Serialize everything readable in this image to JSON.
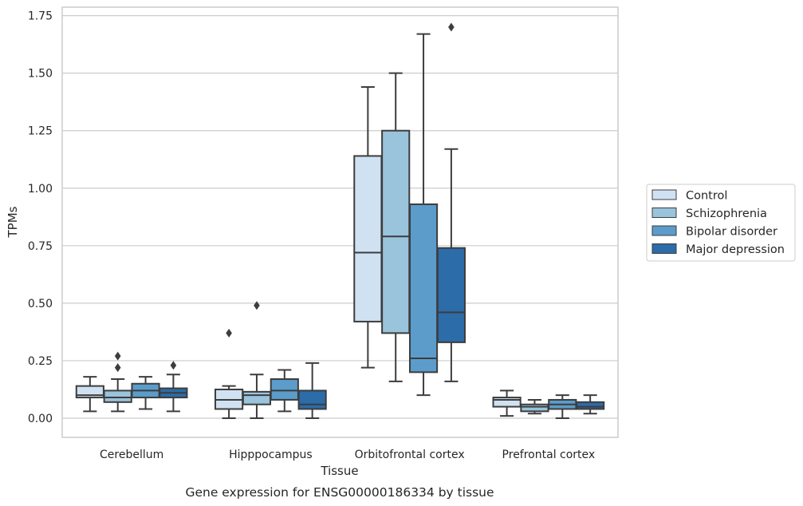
{
  "chart_data": {
    "type": "boxplot",
    "xlabel": "Tissue",
    "ylabel": "TPMs",
    "caption": "Gene expression for ENSG00000186334 by tissue",
    "ylim": [
      -0.08,
      1.78
    ],
    "yticks": [
      "0.00",
      "0.25",
      "0.50",
      "0.75",
      "1.00",
      "1.25",
      "1.50",
      "1.75"
    ],
    "grid": "horizontal",
    "legend_position": "right",
    "categories": [
      "Cerebellum",
      "Hipppocampus",
      "Orbitofrontal cortex",
      "Prefrontal cortex"
    ],
    "series": [
      {
        "name": "Control",
        "color": "#d0e1f2",
        "boxes": [
          {
            "whislo": 0.03,
            "q1": 0.09,
            "med": 0.1,
            "q3": 0.14,
            "whishi": 0.18,
            "fliers": []
          },
          {
            "whislo": 0.0,
            "q1": 0.04,
            "med": 0.08,
            "q3": 0.125,
            "whishi": 0.14,
            "fliers": [
              0.37
            ]
          },
          {
            "whislo": 0.22,
            "q1": 0.42,
            "med": 0.72,
            "q3": 1.14,
            "whishi": 1.44,
            "fliers": []
          },
          {
            "whislo": 0.01,
            "q1": 0.05,
            "med": 0.08,
            "q3": 0.09,
            "whishi": 0.12,
            "fliers": []
          }
        ]
      },
      {
        "name": "Schizophrenia",
        "color": "#9ac3dc",
        "boxes": [
          {
            "whislo": 0.03,
            "q1": 0.07,
            "med": 0.09,
            "q3": 0.12,
            "whishi": 0.17,
            "fliers": [
              0.22,
              0.27
            ]
          },
          {
            "whislo": 0.0,
            "q1": 0.06,
            "med": 0.1,
            "q3": 0.115,
            "whishi": 0.19,
            "fliers": [
              0.49
            ]
          },
          {
            "whislo": 0.16,
            "q1": 0.37,
            "med": 0.79,
            "q3": 1.25,
            "whishi": 1.5,
            "fliers": []
          },
          {
            "whislo": 0.02,
            "q1": 0.03,
            "med": 0.05,
            "q3": 0.06,
            "whishi": 0.08,
            "fliers": []
          }
        ]
      },
      {
        "name": "Bipolar disorder",
        "color": "#5b9cca",
        "boxes": [
          {
            "whislo": 0.04,
            "q1": 0.09,
            "med": 0.12,
            "q3": 0.15,
            "whishi": 0.18,
            "fliers": []
          },
          {
            "whislo": 0.03,
            "q1": 0.08,
            "med": 0.12,
            "q3": 0.17,
            "whishi": 0.21,
            "fliers": []
          },
          {
            "whislo": 0.1,
            "q1": 0.2,
            "med": 0.26,
            "q3": 0.93,
            "whishi": 1.67,
            "fliers": []
          },
          {
            "whislo": 0.0,
            "q1": 0.04,
            "med": 0.06,
            "q3": 0.08,
            "whishi": 0.1,
            "fliers": []
          }
        ]
      },
      {
        "name": "Major depression",
        "color": "#2b6ca9",
        "boxes": [
          {
            "whislo": 0.03,
            "q1": 0.09,
            "med": 0.11,
            "q3": 0.13,
            "whishi": 0.19,
            "fliers": [
              0.23
            ]
          },
          {
            "whislo": 0.0,
            "q1": 0.04,
            "med": 0.06,
            "q3": 0.12,
            "whishi": 0.24,
            "fliers": []
          },
          {
            "whislo": 0.16,
            "q1": 0.33,
            "med": 0.46,
            "q3": 0.74,
            "whishi": 1.17,
            "fliers": [
              1.7
            ]
          },
          {
            "whislo": 0.02,
            "q1": 0.04,
            "med": 0.05,
            "q3": 0.07,
            "whishi": 0.1,
            "fliers": []
          }
        ]
      }
    ]
  }
}
